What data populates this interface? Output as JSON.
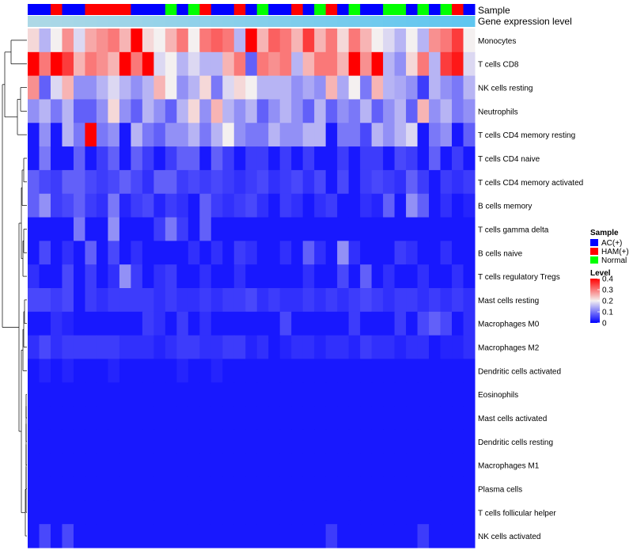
{
  "chart_data": {
    "type": "heatmap",
    "title": "",
    "annotation_tracks": [
      {
        "name": "Sample",
        "label": "Sample"
      },
      {
        "name": "Gene expression level",
        "label": "Gene expression level"
      }
    ],
    "sample_groups": [
      "AC(+)",
      "AC(+)",
      "HAM(+)",
      "AC(+)",
      "AC(+)",
      "HAM(+)",
      "HAM(+)",
      "HAM(+)",
      "HAM(+)",
      "AC(+)",
      "AC(+)",
      "AC(+)",
      "Normal",
      "AC(+)",
      "Normal",
      "HAM(+)",
      "AC(+)",
      "AC(+)",
      "HAM(+)",
      "AC(+)",
      "Normal",
      "AC(+)",
      "AC(+)",
      "HAM(+)",
      "AC(+)",
      "Normal",
      "HAM(+)",
      "AC(+)",
      "Normal",
      "AC(+)",
      "AC(+)",
      "Normal",
      "Normal",
      "AC(+)",
      "Normal",
      "AC(+)",
      "Normal",
      "HAM(+)",
      "AC(+)"
    ],
    "rows": [
      {
        "name": "Monocytes",
        "values": [
          0.22,
          0.15,
          0.2,
          0.28,
          0.18,
          0.26,
          0.28,
          0.3,
          0.25,
          0.4,
          0.22,
          0.2,
          0.25,
          0.3,
          0.2,
          0.3,
          0.32,
          0.3,
          0.15,
          0.4,
          0.25,
          0.32,
          0.3,
          0.25,
          0.35,
          0.25,
          0.3,
          0.22,
          0.3,
          0.25,
          0.2,
          0.18,
          0.15,
          0.2,
          0.15,
          0.28,
          0.3,
          0.35,
          0.2
        ]
      },
      {
        "name": "T cells CD8",
        "values": [
          0.4,
          0.3,
          0.4,
          0.35,
          0.25,
          0.3,
          0.28,
          0.25,
          0.4,
          0.3,
          0.4,
          0.18,
          0.2,
          0.15,
          0.18,
          0.15,
          0.15,
          0.25,
          0.3,
          0.08,
          0.3,
          0.28,
          0.3,
          0.15,
          0.25,
          0.3,
          0.3,
          0.25,
          0.4,
          0.28,
          0.4,
          0.15,
          0.12,
          0.22,
          0.3,
          0.15,
          0.35,
          0.38,
          0.18
        ]
      },
      {
        "name": "NK cells resting",
        "values": [
          0.28,
          0.08,
          0.18,
          0.25,
          0.12,
          0.12,
          0.15,
          0.18,
          0.15,
          0.12,
          0.15,
          0.25,
          0.2,
          0.12,
          0.15,
          0.22,
          0.1,
          0.18,
          0.22,
          0.2,
          0.15,
          0.15,
          0.15,
          0.12,
          0.14,
          0.12,
          0.25,
          0.14,
          0.2,
          0.1,
          0.25,
          0.15,
          0.14,
          0.12,
          0.05,
          0.15,
          0.12,
          0.1,
          0.15
        ]
      },
      {
        "name": "Neutrophils",
        "values": [
          0.12,
          0.15,
          0.1,
          0.15,
          0.08,
          0.08,
          0.12,
          0.22,
          0.12,
          0.08,
          0.15,
          0.12,
          0.08,
          0.15,
          0.22,
          0.12,
          0.25,
          0.15,
          0.12,
          0.15,
          0.08,
          0.12,
          0.15,
          0.12,
          0.08,
          0.15,
          0.08,
          0.12,
          0.1,
          0.15,
          0.08,
          0.12,
          0.15,
          0.08,
          0.25,
          0.12,
          0.15,
          0.1,
          0.12
        ]
      },
      {
        "name": "T cells CD4 memory resting",
        "values": [
          0.02,
          0.12,
          0.02,
          0.15,
          0.1,
          0.4,
          0.1,
          0.12,
          0.02,
          0.15,
          0.1,
          0.08,
          0.12,
          0.12,
          0.15,
          0.1,
          0.15,
          0.2,
          0.12,
          0.1,
          0.1,
          0.15,
          0.12,
          0.12,
          0.15,
          0.15,
          0.02,
          0.1,
          0.1,
          0.06,
          0.15,
          0.12,
          0.15,
          0.18,
          0.02,
          0.1,
          0.12,
          0.02,
          0.08
        ]
      },
      {
        "name": "T cells CD4 naive",
        "values": [
          0.02,
          0.1,
          0.02,
          0.02,
          0.08,
          0.02,
          0.05,
          0.08,
          0.02,
          0.08,
          0.05,
          0.02,
          0.05,
          0.08,
          0.08,
          0.02,
          0.08,
          0.05,
          0.02,
          0.05,
          0.05,
          0.02,
          0.05,
          0.02,
          0.05,
          0.02,
          0.02,
          0.05,
          0.02,
          0.05,
          0.05,
          0.02,
          0.06,
          0.05,
          0.02,
          0.08,
          0.02,
          0.05,
          0.02
        ]
      },
      {
        "name": "T cells CD4 memory activated",
        "values": [
          0.08,
          0.06,
          0.05,
          0.08,
          0.08,
          0.06,
          0.05,
          0.06,
          0.08,
          0.06,
          0.04,
          0.08,
          0.08,
          0.05,
          0.06,
          0.05,
          0.06,
          0.05,
          0.04,
          0.05,
          0.06,
          0.04,
          0.05,
          0.06,
          0.04,
          0.06,
          0.02,
          0.06,
          0.02,
          0.05,
          0.06,
          0.05,
          0.04,
          0.08,
          0.05,
          0.02,
          0.05,
          0.04,
          0.05
        ]
      },
      {
        "name": "B cells memory",
        "values": [
          0.08,
          0.12,
          0.05,
          0.06,
          0.08,
          0.05,
          0.04,
          0.1,
          0.03,
          0.05,
          0.06,
          0.03,
          0.05,
          0.04,
          0.02,
          0.08,
          0.05,
          0.04,
          0.05,
          0.06,
          0.04,
          0.02,
          0.05,
          0.04,
          0.02,
          0.04,
          0.05,
          0.02,
          0.02,
          0.04,
          0.03,
          0.08,
          0.02,
          0.12,
          0.08,
          0.02,
          0.04,
          0.02,
          0.03
        ]
      },
      {
        "name": "T cells gamma delta",
        "values": [
          0.02,
          0.02,
          0.02,
          0.02,
          0.1,
          0.02,
          0.02,
          0.12,
          0.02,
          0.02,
          0.02,
          0.05,
          0.1,
          0.05,
          0.02,
          0.08,
          0.02,
          0.02,
          0.02,
          0.02,
          0.02,
          0.02,
          0.02,
          0.02,
          0.02,
          0.02,
          0.02,
          0.02,
          0.02,
          0.02,
          0.02,
          0.02,
          0.02,
          0.02,
          0.02,
          0.02,
          0.02,
          0.02,
          0.02
        ]
      },
      {
        "name": "B cells naive",
        "values": [
          0.02,
          0.06,
          0.02,
          0.04,
          0.02,
          0.08,
          0.02,
          0.06,
          0.02,
          0.04,
          0.02,
          0.02,
          0.02,
          0.02,
          0.04,
          0.02,
          0.04,
          0.02,
          0.05,
          0.04,
          0.02,
          0.02,
          0.04,
          0.02,
          0.08,
          0.04,
          0.02,
          0.12,
          0.04,
          0.02,
          0.02,
          0.02,
          0.05,
          0.04,
          0.02,
          0.02,
          0.04,
          0.02,
          0.02
        ]
      },
      {
        "name": "T cells regulatory  Tregs",
        "values": [
          0.04,
          0.02,
          0.02,
          0.06,
          0.02,
          0.05,
          0.02,
          0.04,
          0.12,
          0.05,
          0.02,
          0.04,
          0.05,
          0.02,
          0.02,
          0.04,
          0.02,
          0.02,
          0.04,
          0.02,
          0.02,
          0.02,
          0.02,
          0.02,
          0.04,
          0.02,
          0.02,
          0.06,
          0.02,
          0.08,
          0.02,
          0.04,
          0.02,
          0.02,
          0.04,
          0.02,
          0.02,
          0.04,
          0.02
        ]
      },
      {
        "name": "Mast cells resting",
        "values": [
          0.06,
          0.06,
          0.05,
          0.06,
          0.02,
          0.05,
          0.04,
          0.05,
          0.05,
          0.05,
          0.05,
          0.04,
          0.05,
          0.04,
          0.04,
          0.05,
          0.04,
          0.05,
          0.05,
          0.06,
          0.04,
          0.05,
          0.04,
          0.04,
          0.05,
          0.04,
          0.05,
          0.04,
          0.05,
          0.06,
          0.05,
          0.04,
          0.05,
          0.05,
          0.04,
          0.05,
          0.04,
          0.05,
          0.04
        ]
      },
      {
        "name": "Macrophages M0",
        "values": [
          0.02,
          0.02,
          0.04,
          0.03,
          0.02,
          0.02,
          0.02,
          0.02,
          0.02,
          0.02,
          0.05,
          0.04,
          0.02,
          0.05,
          0.02,
          0.04,
          0.02,
          0.02,
          0.02,
          0.02,
          0.02,
          0.02,
          0.06,
          0.02,
          0.02,
          0.02,
          0.02,
          0.02,
          0.05,
          0.02,
          0.02,
          0.02,
          0.05,
          0.02,
          0.06,
          0.08,
          0.06,
          0.02,
          0.04
        ]
      },
      {
        "name": "Macrophages M2",
        "values": [
          0.04,
          0.06,
          0.04,
          0.05,
          0.05,
          0.05,
          0.05,
          0.05,
          0.04,
          0.04,
          0.04,
          0.03,
          0.04,
          0.05,
          0.05,
          0.04,
          0.04,
          0.05,
          0.05,
          0.03,
          0.04,
          0.02,
          0.03,
          0.04,
          0.04,
          0.03,
          0.04,
          0.04,
          0.03,
          0.05,
          0.04,
          0.04,
          0.03,
          0.04,
          0.04,
          0.02,
          0.03,
          0.03,
          0.04
        ]
      },
      {
        "name": "Dendritic cells activated",
        "values": [
          0.02,
          0.03,
          0.02,
          0.03,
          0.02,
          0.02,
          0.02,
          0.03,
          0.02,
          0.02,
          0.02,
          0.02,
          0.02,
          0.03,
          0.02,
          0.02,
          0.03,
          0.02,
          0.02,
          0.02,
          0.02,
          0.02,
          0.02,
          0.02,
          0.02,
          0.02,
          0.02,
          0.02,
          0.02,
          0.02,
          0.02,
          0.02,
          0.02,
          0.02,
          0.02,
          0.02,
          0.02,
          0.02,
          0.02
        ]
      },
      {
        "name": "Eosinophils",
        "values": [
          0.02,
          0.02,
          0.02,
          0.02,
          0.02,
          0.02,
          0.02,
          0.02,
          0.02,
          0.02,
          0.02,
          0.02,
          0.02,
          0.02,
          0.02,
          0.02,
          0.02,
          0.02,
          0.02,
          0.02,
          0.02,
          0.02,
          0.02,
          0.02,
          0.02,
          0.02,
          0.02,
          0.02,
          0.02,
          0.02,
          0.02,
          0.02,
          0.02,
          0.02,
          0.02,
          0.02,
          0.02,
          0.02,
          0.02
        ]
      },
      {
        "name": "Mast cells activated",
        "values": [
          0.02,
          0.02,
          0.02,
          0.02,
          0.02,
          0.02,
          0.02,
          0.02,
          0.02,
          0.02,
          0.02,
          0.02,
          0.02,
          0.02,
          0.02,
          0.02,
          0.02,
          0.02,
          0.02,
          0.02,
          0.02,
          0.02,
          0.02,
          0.02,
          0.02,
          0.02,
          0.02,
          0.02,
          0.02,
          0.02,
          0.02,
          0.02,
          0.02,
          0.02,
          0.02,
          0.02,
          0.02,
          0.02,
          0.02
        ]
      },
      {
        "name": "Dendritic cells resting",
        "values": [
          0.02,
          0.02,
          0.02,
          0.02,
          0.02,
          0.02,
          0.02,
          0.02,
          0.02,
          0.02,
          0.02,
          0.02,
          0.02,
          0.02,
          0.02,
          0.02,
          0.02,
          0.02,
          0.02,
          0.02,
          0.02,
          0.02,
          0.02,
          0.02,
          0.02,
          0.02,
          0.02,
          0.02,
          0.02,
          0.02,
          0.02,
          0.02,
          0.02,
          0.02,
          0.02,
          0.02,
          0.02,
          0.02,
          0.02
        ]
      },
      {
        "name": "Macrophages M1",
        "values": [
          0.02,
          0.02,
          0.02,
          0.02,
          0.02,
          0.02,
          0.02,
          0.02,
          0.02,
          0.02,
          0.02,
          0.02,
          0.02,
          0.02,
          0.02,
          0.02,
          0.02,
          0.02,
          0.02,
          0.02,
          0.02,
          0.02,
          0.02,
          0.02,
          0.02,
          0.02,
          0.02,
          0.02,
          0.02,
          0.02,
          0.02,
          0.02,
          0.02,
          0.02,
          0.02,
          0.02,
          0.02,
          0.02,
          0.02
        ]
      },
      {
        "name": "Plasma cells",
        "values": [
          0.02,
          0.02,
          0.02,
          0.02,
          0.02,
          0.02,
          0.02,
          0.02,
          0.02,
          0.02,
          0.02,
          0.02,
          0.02,
          0.02,
          0.02,
          0.02,
          0.02,
          0.02,
          0.02,
          0.02,
          0.02,
          0.02,
          0.02,
          0.02,
          0.02,
          0.02,
          0.02,
          0.02,
          0.02,
          0.02,
          0.02,
          0.02,
          0.02,
          0.02,
          0.02,
          0.02,
          0.02,
          0.02,
          0.02
        ]
      },
      {
        "name": "T cells follicular helper",
        "values": [
          0.02,
          0.02,
          0.02,
          0.02,
          0.02,
          0.02,
          0.02,
          0.02,
          0.02,
          0.02,
          0.02,
          0.02,
          0.02,
          0.02,
          0.02,
          0.02,
          0.02,
          0.02,
          0.02,
          0.02,
          0.02,
          0.02,
          0.02,
          0.02,
          0.02,
          0.02,
          0.02,
          0.02,
          0.02,
          0.02,
          0.02,
          0.02,
          0.02,
          0.02,
          0.02,
          0.02,
          0.02,
          0.02,
          0.02
        ]
      },
      {
        "name": "NK cells activated",
        "values": [
          0.02,
          0.06,
          0.02,
          0.06,
          0.02,
          0.02,
          0.02,
          0.02,
          0.02,
          0.02,
          0.02,
          0.02,
          0.02,
          0.02,
          0.02,
          0.02,
          0.02,
          0.02,
          0.02,
          0.02,
          0.02,
          0.02,
          0.02,
          0.02,
          0.02,
          0.02,
          0.05,
          0.02,
          0.02,
          0.02,
          0.02,
          0.02,
          0.02,
          0.02,
          0.05,
          0.02,
          0.02,
          0.02,
          0.02
        ]
      }
    ],
    "color_scale": {
      "min": 0,
      "max": 0.4,
      "low": "#0000ff",
      "mid": "#f4f0f0",
      "high": "#ff0000",
      "mid_value": 0.2
    },
    "expression_track_colors": [
      "#add8e6",
      "#5fc6f0"
    ],
    "legend": {
      "sample": {
        "title": "Sample",
        "entries": [
          {
            "label": "AC(+)",
            "color": "#0000ff"
          },
          {
            "label": "HAM(+)",
            "color": "#ff0000"
          },
          {
            "label": "Normal",
            "color": "#00ff00"
          }
        ]
      },
      "level": {
        "title": "Level",
        "ticks": [
          "0.4",
          "0.3",
          "0.2",
          "0.1",
          "0"
        ],
        "tick_values": [
          0.4,
          0.3,
          0.2,
          0.1,
          0
        ]
      }
    },
    "dendrogram": "row"
  }
}
